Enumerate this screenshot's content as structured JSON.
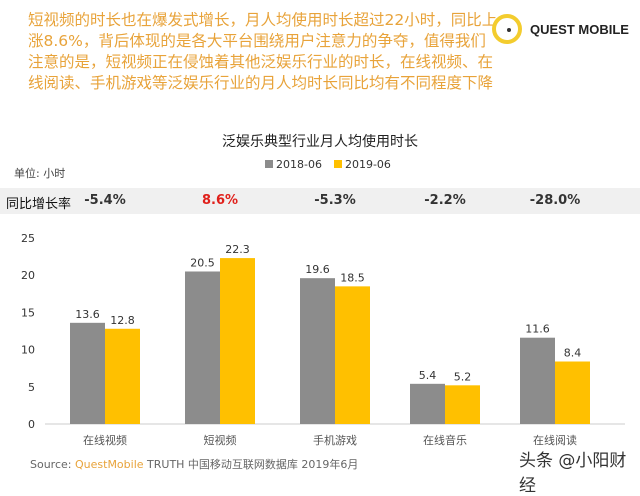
{
  "headline": "短视频的时长也在爆发式增长，月人均使用时长超过22小时，同比上涨8.6%，背后体现的是各大平台围绕用户注意力的争夺，值得我们注意的是，短视频正在侵蚀着其他泛娱乐行业的时长，在线视频、在线阅读、手机游戏等泛娱乐行业的月人均时长同比均有不同程度下降",
  "logo": "QUEST MOBILE",
  "source": {
    "prefix": "Source:",
    "brand": "QuestMobile",
    "text": "TRUTH 中国移动互联网数据库 2019年6月"
  },
  "credit": "头条 @小阳财经",
  "growth_row": {
    "label": "同比增长率",
    "values": [
      "-5.4%",
      "8.6%",
      "-5.3%",
      "-2.2%",
      "-28.0%"
    ],
    "highlight_color": "#e0201b"
  },
  "chart_data": {
    "type": "bar",
    "title": "泛娱乐典型行业月人均使用时长",
    "unit_label": "单位: 小时",
    "categories": [
      "在线视频",
      "短视频",
      "手机游戏",
      "在线音乐",
      "在线阅读"
    ],
    "series": [
      {
        "name": "2018-06",
        "values": [
          13.6,
          20.5,
          19.6,
          5.4,
          11.6
        ],
        "color": "#8c8c8c"
      },
      {
        "name": "2019-06",
        "values": [
          12.8,
          22.3,
          18.5,
          5.2,
          8.4
        ],
        "color": "#ffc000"
      }
    ],
    "ylim": [
      0,
      25
    ],
    "yticks": [
      "0",
      "5",
      "10",
      "15",
      "20",
      "25"
    ],
    "legend": "top-center",
    "grid": false
  }
}
